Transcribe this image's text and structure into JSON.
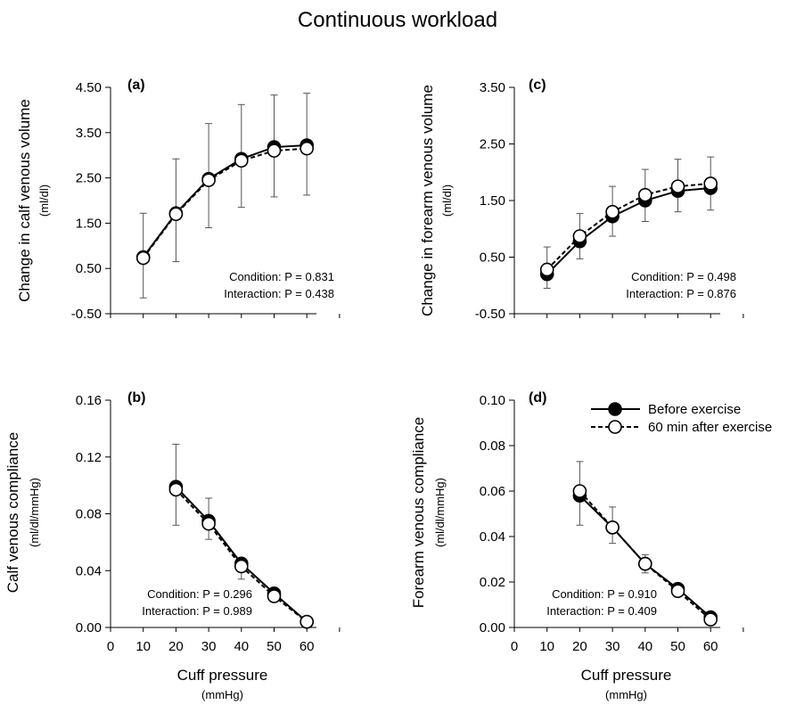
{
  "figure": {
    "title": "Continuous workload",
    "legend": {
      "items": [
        {
          "label": "Before exercise",
          "marker": "filled-circle",
          "line": "solid"
        },
        {
          "label": "60 min after exercise",
          "marker": "open-circle",
          "line": "dashed"
        }
      ],
      "placement": "top-right of panel (d)"
    }
  },
  "chart_data": [
    {
      "id": "a",
      "panel_label": "(a)",
      "type": "line",
      "ylabel": "Change in calf venous volume",
      "yunit": "(ml/dl)",
      "xlabel": "",
      "xunit": "",
      "ylim": [
        -0.5,
        4.5
      ],
      "yticks": [
        -0.5,
        0.5,
        1.5,
        2.5,
        3.5,
        4.5
      ],
      "ytick_labels": [
        "-0.50",
        "0.50",
        "1.50",
        "2.50",
        "3.50",
        "4.50"
      ],
      "xlim": [
        0,
        70
      ],
      "xticks": [],
      "xtick_labels": [],
      "grid": false,
      "x": [
        10,
        20,
        30,
        40,
        50,
        60
      ],
      "series": [
        {
          "name": "Before exercise",
          "values": [
            0.75,
            1.72,
            2.48,
            2.92,
            3.18,
            3.22
          ],
          "error_hi": [
            1.72,
            2.92,
            3.7,
            4.12,
            4.33,
            4.37
          ],
          "error_lo": [
            -0.15,
            0.65,
            1.4,
            1.85,
            2.08,
            2.12
          ]
        },
        {
          "name": "60 min after exercise",
          "values": [
            0.73,
            1.7,
            2.45,
            2.88,
            3.1,
            3.15
          ],
          "error_hi": [],
          "error_lo": []
        }
      ],
      "stats": [
        "Condition: P = 0.831",
        "Interaction: P = 0.438"
      ]
    },
    {
      "id": "c",
      "panel_label": "(c)",
      "type": "line",
      "ylabel": "Change in forearm venous volume",
      "yunit": "(ml/dl)",
      "xlabel": "",
      "xunit": "",
      "ylim": [
        -0.5,
        3.5
      ],
      "yticks": [
        -0.5,
        0.5,
        1.5,
        2.5,
        3.5
      ],
      "ytick_labels": [
        "-0.50",
        "0.50",
        "1.50",
        "2.50",
        "3.50"
      ],
      "xlim": [
        0,
        70
      ],
      "xticks": [],
      "xtick_labels": [],
      "grid": false,
      "x": [
        10,
        20,
        30,
        40,
        50,
        60
      ],
      "series": [
        {
          "name": "Before exercise",
          "values": [
            0.2,
            0.78,
            1.22,
            1.5,
            1.67,
            1.72
          ],
          "error_hi": [],
          "error_lo": [
            -0.05,
            0.47,
            0.87,
            1.13,
            1.3,
            1.33
          ]
        },
        {
          "name": "60 min after exercise",
          "values": [
            0.28,
            0.87,
            1.3,
            1.6,
            1.75,
            1.8
          ],
          "error_hi": [
            0.68,
            1.27,
            1.75,
            2.05,
            2.23,
            2.27
          ],
          "error_lo": []
        }
      ],
      "stats": [
        "Condition: P = 0.498",
        "Interaction: P = 0.876"
      ]
    },
    {
      "id": "b",
      "panel_label": "(b)",
      "type": "line",
      "ylabel": "Calf venous compliance",
      "yunit": "(ml/dl/mmHg)",
      "xlabel": "Cuff pressure",
      "xunit": "(mmHg)",
      "ylim": [
        0,
        0.16
      ],
      "yticks": [
        0,
        0.04,
        0.08,
        0.12,
        0.16
      ],
      "ytick_labels": [
        "0.00",
        "0.04",
        "0.08",
        "0.12",
        "0.16"
      ],
      "xlim": [
        0,
        70
      ],
      "xticks": [
        0,
        10,
        20,
        30,
        40,
        50,
        60
      ],
      "xtick_labels": [
        "0",
        "10",
        "20",
        "30",
        "40",
        "50",
        "60"
      ],
      "grid": false,
      "x": [
        20,
        30,
        40,
        50,
        60
      ],
      "series": [
        {
          "name": "Before exercise",
          "values": [
            0.099,
            0.075,
            0.045,
            0.024,
            0.004
          ],
          "error_hi": [
            0.129,
            0.091,
            0.047,
            0.026,
            0.005
          ],
          "error_lo": [
            0.072,
            0.062,
            0.034,
            0.018,
            0.003
          ]
        },
        {
          "name": "60 min after exercise",
          "values": [
            0.097,
            0.073,
            0.043,
            0.022,
            0.004
          ],
          "error_hi": [],
          "error_lo": []
        }
      ],
      "stats": [
        "Condition: P = 0.296",
        "Interaction: P = 0.989"
      ]
    },
    {
      "id": "d",
      "panel_label": "(d)",
      "type": "line",
      "ylabel": "Forearm venous compliance",
      "yunit": "(ml/dl/mmHg)",
      "xlabel": "Cuff pressure",
      "xunit": "(mmHg)",
      "ylim": [
        0,
        0.1
      ],
      "yticks": [
        0,
        0.02,
        0.04,
        0.06,
        0.08,
        0.1
      ],
      "ytick_labels": [
        "0.00",
        "0.02",
        "0.04",
        "0.06",
        "0.08",
        "0.10"
      ],
      "xlim": [
        0,
        70
      ],
      "xticks": [
        0,
        10,
        20,
        30,
        40,
        50,
        60
      ],
      "xtick_labels": [
        "0",
        "10",
        "20",
        "30",
        "40",
        "50",
        "60"
      ],
      "grid": false,
      "x": [
        20,
        30,
        40,
        50,
        60
      ],
      "series": [
        {
          "name": "Before exercise",
          "values": [
            0.058,
            0.044,
            0.028,
            0.017,
            0.0045
          ],
          "error_hi": [
            0.073,
            0.053,
            0.032,
            0.019,
            0.0055
          ],
          "error_lo": [
            0.045,
            0.037,
            0.024,
            0.015,
            0.003
          ]
        },
        {
          "name": "60 min after exercise",
          "values": [
            0.06,
            0.044,
            0.028,
            0.016,
            0.0035
          ],
          "error_hi": [],
          "error_lo": []
        }
      ],
      "stats": [
        "Condition: P = 0.910",
        "Interaction: P = 0.409"
      ]
    }
  ]
}
